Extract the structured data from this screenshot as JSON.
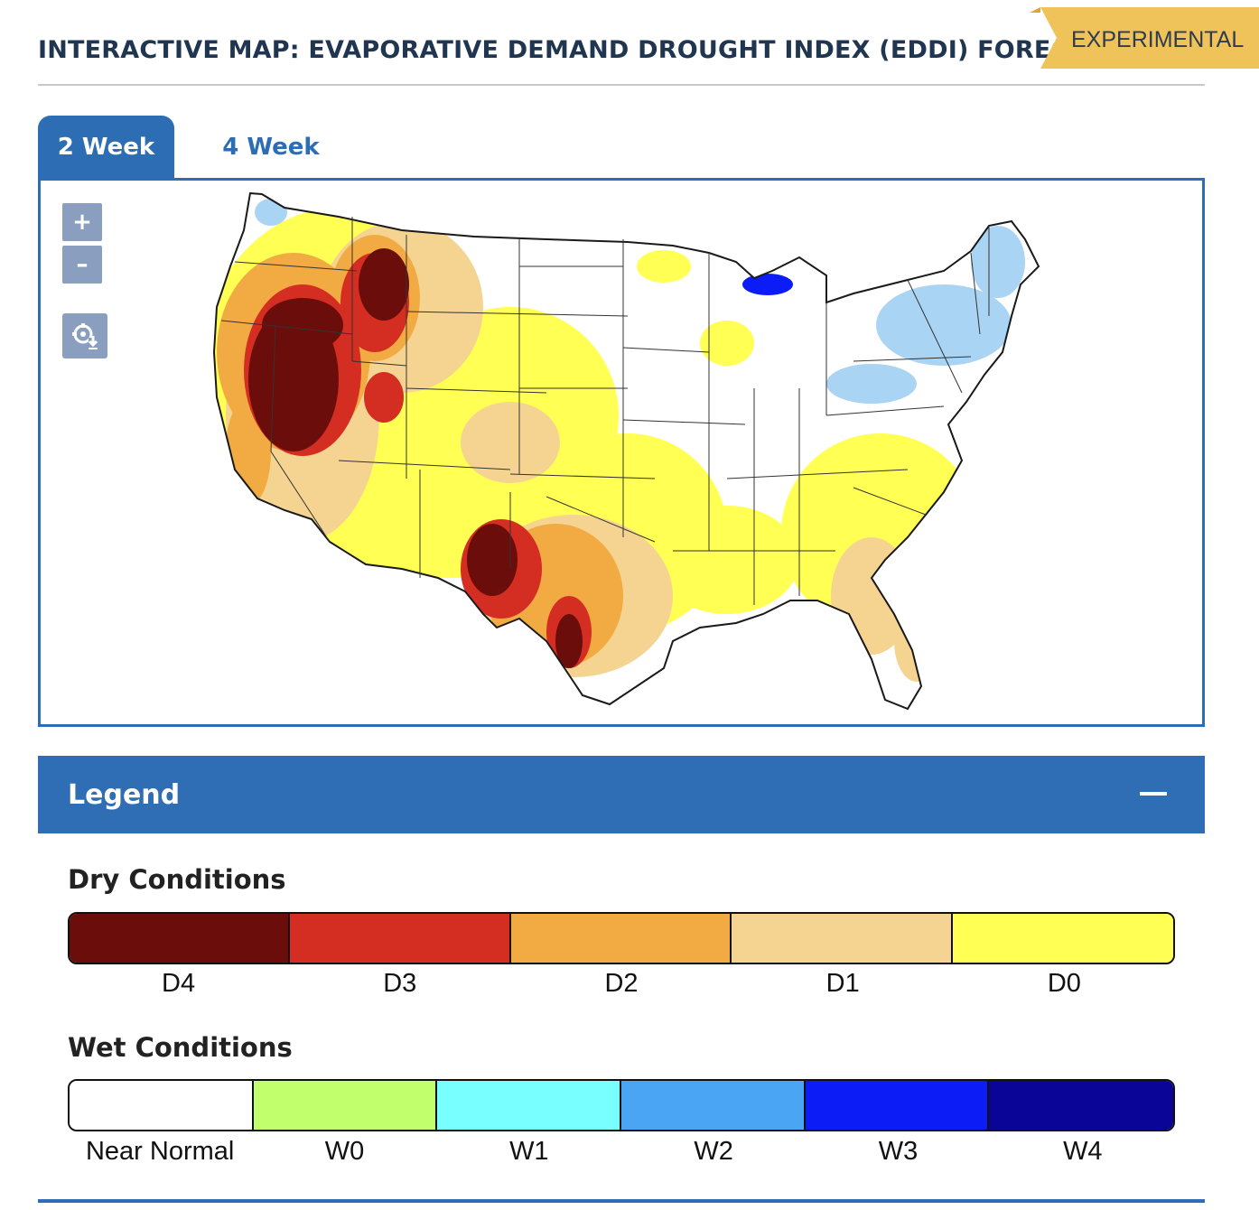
{
  "header": {
    "title": "INTERACTIVE MAP: EVAPORATIVE DEMAND DROUGHT INDEX (EDDI) FORECASTS",
    "badge": "EXPERIMENTAL"
  },
  "tabs": [
    {
      "label": "2 Week",
      "active": true
    },
    {
      "label": "4 Week",
      "active": false
    }
  ],
  "map_controls": {
    "zoom_in": "+",
    "zoom_out": "–",
    "download_icon": "download-icon"
  },
  "legend": {
    "title": "Legend",
    "collapse_icon": "minus-icon",
    "dry": {
      "title": "Dry Conditions",
      "categories": [
        {
          "label": "D4",
          "color": "#6b0d0b"
        },
        {
          "label": "D3",
          "color": "#d42e22"
        },
        {
          "label": "D2",
          "color": "#f2ab42"
        },
        {
          "label": "D1",
          "color": "#f5d491"
        },
        {
          "label": "D0",
          "color": "#ffff54"
        }
      ]
    },
    "wet": {
      "title": "Wet Conditions",
      "categories": [
        {
          "label": "Near Normal",
          "color": "#ffffff"
        },
        {
          "label": "W0",
          "color": "#c1ff6c"
        },
        {
          "label": "W1",
          "color": "#78ffff"
        },
        {
          "label": "W2",
          "color": "#4aa6f5"
        },
        {
          "label": "W3",
          "color": "#0b1cf7"
        },
        {
          "label": "W4",
          "color": "#0a0596"
        }
      ]
    }
  }
}
